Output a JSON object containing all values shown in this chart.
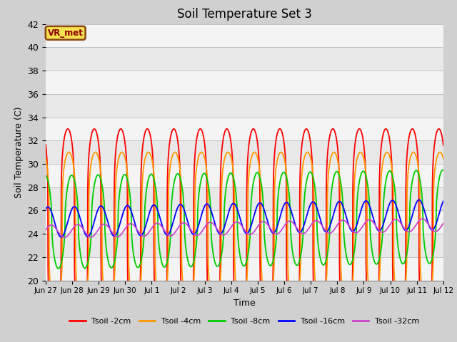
{
  "title": "Soil Temperature Set 3",
  "xlabel": "Time",
  "ylabel": "Soil Temperature (C)",
  "ylim": [
    20,
    42
  ],
  "annotation": "VR_met",
  "fig_bg": "#d0d0d0",
  "plot_bg": "#e8e8e8",
  "series_colors": [
    "#ff0000",
    "#ff9900",
    "#00cc00",
    "#0000ff",
    "#cc44cc"
  ],
  "series_labels": [
    "Tsoil -2cm",
    "Tsoil -4cm",
    "Tsoil -8cm",
    "Tsoil -16cm",
    "Tsoil -32cm"
  ],
  "xtick_labels": [
    "Jun 27",
    "Jun 28",
    "Jun 29",
    "Jun 30",
    "Jul 1",
    "Jul 2",
    "Jul 3",
    "Jul 4",
    "Jul 5",
    "Jul 6",
    "Jul 7",
    "Jul 8",
    "Jul 9",
    "Jul 10",
    "Jul 11",
    "Jul 12"
  ],
  "n_days": 16,
  "amplitudes": [
    8.5,
    6.5,
    4.0,
    1.3,
    0.55
  ],
  "baselines": [
    24.5,
    24.5,
    25.0,
    25.0,
    24.2
  ],
  "baseline_trends": [
    0.0,
    0.0,
    0.5,
    0.7,
    0.6
  ],
  "peak_hour": 14.0,
  "phase_delay_hours": [
    0.0,
    1.0,
    3.5,
    6.0,
    9.0
  ],
  "sharpness": [
    4.0,
    4.0,
    2.0,
    1.0,
    1.0
  ],
  "linewidths": [
    1.3,
    1.3,
    1.3,
    1.3,
    1.3
  ]
}
